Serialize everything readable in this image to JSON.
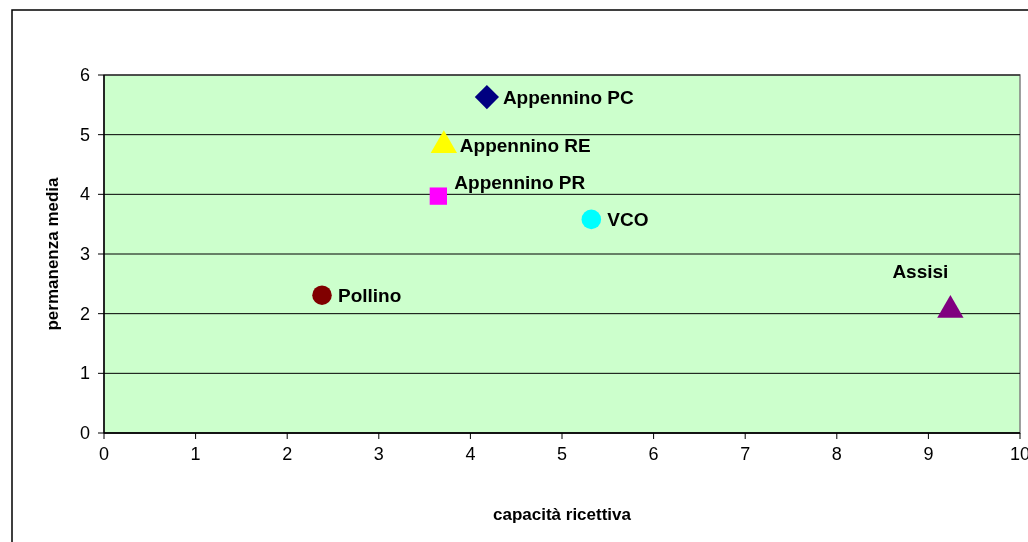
{
  "chart_data": {
    "type": "scatter",
    "xlabel": "capacità ricettiva",
    "ylabel": "permanenza media",
    "xlim": [
      0,
      10
    ],
    "xticks": [
      0,
      1,
      2,
      3,
      4,
      5,
      6,
      7,
      8,
      9,
      10
    ],
    "ylim": [
      0,
      6
    ],
    "yticks": [
      0,
      1,
      2,
      3,
      4,
      5,
      6
    ],
    "grid": "y",
    "series": [
      {
        "name": "Appennino PC",
        "color": "#000080",
        "marker": "diamond",
        "x": [
          4.18
        ],
        "values": [
          5.63
        ]
      },
      {
        "name": "Appennino RE",
        "color": "#ffff00",
        "marker": "triangle",
        "x": [
          3.71
        ],
        "values": [
          4.82
        ]
      },
      {
        "name": "Appennino PR",
        "color": "#ff00ff",
        "marker": "square",
        "x": [
          3.65
        ],
        "values": [
          3.97
        ]
      },
      {
        "name": "VCO",
        "color": "#00ffff",
        "marker": "circle",
        "x": [
          5.32
        ],
        "values": [
          3.58
        ]
      },
      {
        "name": "Pollino",
        "color": "#800000",
        "marker": "circle",
        "x": [
          2.38
        ],
        "values": [
          2.31
        ]
      },
      {
        "name": "Assisi",
        "color": "#800080",
        "marker": "triangle",
        "x": [
          9.24
        ],
        "values": [
          2.06
        ]
      }
    ]
  }
}
